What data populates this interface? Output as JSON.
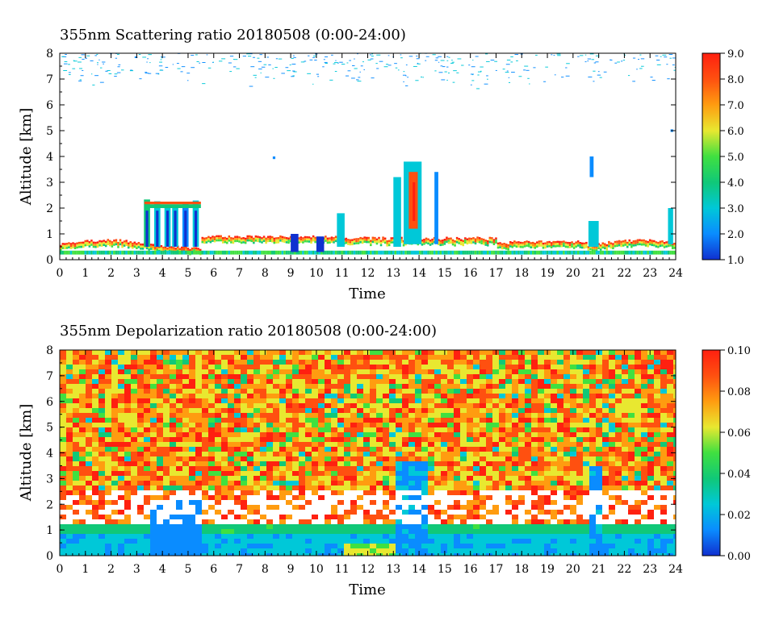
{
  "chart_data": [
    {
      "type": "heatmap",
      "title": "355nm Scattering ratio  20180508 (0:00-24:00)",
      "xlabel": "Time",
      "ylabel": "Altitude [km]",
      "xlim": [
        0,
        24
      ],
      "ylim": [
        0,
        8
      ],
      "x_ticks": [
        "0",
        "1",
        "2",
        "3",
        "4",
        "5",
        "6",
        "7",
        "8",
        "9",
        "10",
        "11",
        "12",
        "13",
        "14",
        "15",
        "16",
        "17",
        "18",
        "19",
        "20",
        "21",
        "22",
        "23",
        "24"
      ],
      "y_ticks": [
        "0",
        "1",
        "2",
        "3",
        "4",
        "5",
        "6",
        "7",
        "8"
      ],
      "colorbar": {
        "range": [
          1.0,
          9.0
        ],
        "ticks": [
          "1.0",
          "2.0",
          "3.0",
          "4.0",
          "5.0",
          "6.0",
          "7.0",
          "8.0",
          "9.0"
        ],
        "colors": [
          "#1030d0",
          "#0a8cff",
          "#00c8d8",
          "#10c878",
          "#40e040",
          "#e8e830",
          "#ff9c10",
          "#ff5010",
          "#ff2010"
        ]
      },
      "features": [
        {
          "desc": "boundary layer",
          "x": [
            0,
            24
          ],
          "y": [
            0.2,
            0.9
          ]
        },
        {
          "desc": "cloud",
          "x": [
            3.3,
            5.5
          ],
          "y": [
            0.4,
            2.4
          ]
        },
        {
          "desc": "cloud",
          "x": [
            13.0,
            14.2
          ],
          "y": [
            0.5,
            3.8
          ]
        },
        {
          "desc": "cloud",
          "x": [
            20.6,
            21.0
          ],
          "y": [
            0.5,
            1.5
          ]
        },
        {
          "desc": "high-altitude noise",
          "x": [
            0,
            24
          ],
          "y": [
            6.5,
            8.0
          ]
        }
      ]
    },
    {
      "type": "heatmap",
      "title": "355nm Depolarization ratio  20180508 (0:00-24:00)",
      "xlabel": "Time",
      "ylabel": "Altitude [km]",
      "xlim": [
        0,
        24
      ],
      "ylim": [
        0,
        8
      ],
      "x_ticks": [
        "0",
        "1",
        "2",
        "3",
        "4",
        "5",
        "6",
        "7",
        "8",
        "9",
        "10",
        "11",
        "12",
        "13",
        "14",
        "15",
        "16",
        "17",
        "18",
        "19",
        "20",
        "21",
        "22",
        "23",
        "24"
      ],
      "y_ticks": [
        "0",
        "1",
        "2",
        "3",
        "4",
        "5",
        "6",
        "7",
        "8"
      ],
      "colorbar": {
        "range": [
          0.0,
          0.1
        ],
        "ticks": [
          "0.00",
          "0.02",
          "0.04",
          "0.06",
          "0.08",
          "0.10"
        ],
        "colors": [
          "#1030d0",
          "#0a8cff",
          "#00c8d8",
          "#10c878",
          "#40e040",
          "#e8e830",
          "#ff9c10",
          "#ff5010",
          "#ff2010"
        ]
      },
      "features": [
        {
          "desc": "noise field",
          "x": [
            0,
            24
          ],
          "y": [
            2.5,
            8.0
          ]
        },
        {
          "desc": "low depolarization layer",
          "x": [
            0,
            24
          ],
          "y": [
            0,
            1.4
          ]
        },
        {
          "desc": "cloud",
          "x": [
            3.3,
            5.5
          ],
          "y": [
            0.5,
            2.3
          ]
        },
        {
          "desc": "cloud",
          "x": [
            13.0,
            14.2
          ],
          "y": [
            0.5,
            3.8
          ]
        }
      ]
    }
  ]
}
